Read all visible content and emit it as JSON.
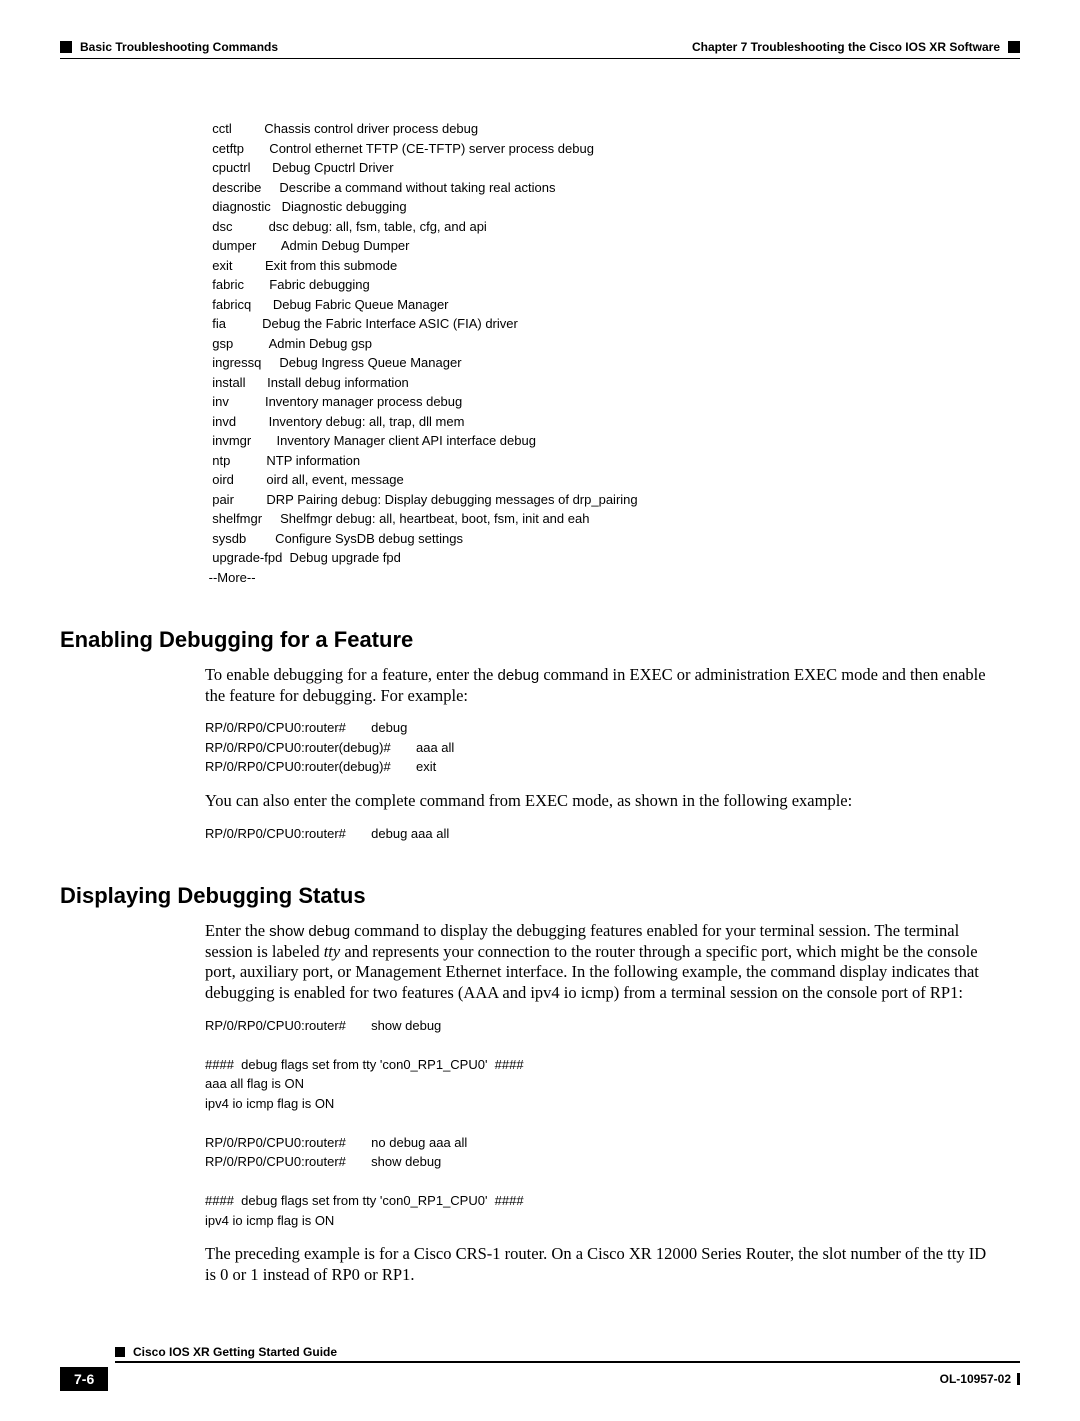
{
  "header": {
    "section": "Basic Troubleshooting Commands",
    "chapter": "Chapter 7      Troubleshooting the Cisco IOS XR Software"
  },
  "debug_rows": [
    [
      "cctl",
      "Chassis control driver process debug"
    ],
    [
      "cetftp",
      "Control ethernet TFTP (CE-TFTP) server process debug"
    ],
    [
      "cpuctrl",
      "Debug Cpuctrl Driver"
    ],
    [
      "describe",
      "Describe a command without taking real actions"
    ],
    [
      "diagnostic",
      "Diagnostic debugging"
    ],
    [
      "dsc",
      "dsc debug: all, fsm, table, cfg, and api"
    ],
    [
      "dumper",
      "Admin Debug Dumper"
    ],
    [
      "exit",
      "Exit from this submode"
    ],
    [
      "fabric",
      "Fabric debugging"
    ],
    [
      "fabricq",
      "Debug Fabric Queue Manager"
    ],
    [
      "fia",
      "Debug the Fabric Interface ASIC (FIA) driver"
    ],
    [
      "gsp",
      "Admin Debug gsp"
    ],
    [
      "ingressq",
      "Debug Ingress Queue Manager"
    ],
    [
      "install",
      "Install debug information"
    ],
    [
      "inv",
      "Inventory manager process debug"
    ],
    [
      "invd",
      "Inventory debug: all, trap, dll mem"
    ],
    [
      "invmgr",
      "Inventory Manager client API interface debug"
    ],
    [
      "ntp",
      "NTP information"
    ],
    [
      "oird",
      "oird all, event, message"
    ],
    [
      "pair",
      "DRP Pairing debug: Display debugging messages of drp_pairing"
    ],
    [
      "shelfmgr",
      "Shelfmgr debug: all, heartbeat, boot, fsm, init and eah"
    ],
    [
      "sysdb",
      "Configure SysDB debug settings"
    ],
    [
      "upgrade-fpd",
      "Debug upgrade fpd"
    ]
  ],
  "more_line": "--More--",
  "section1": {
    "title": "Enabling Debugging for a Feature",
    "p1_a": "To enable debugging for a feature, enter the ",
    "p1_b": "debug",
    "p1_c": " command in EXEC or administration EXEC mode and then enable the feature for debugging. For example:",
    "code1": "RP/0/RP0/CPU0:router#       debug\nRP/0/RP0/CPU0:router(debug)#       aaa all\nRP/0/RP0/CPU0:router(debug)#       exit",
    "p2": "You can also enter the complete command from EXEC mode, as shown in the following example:",
    "code2": "RP/0/RP0/CPU0:router#       debug aaa all"
  },
  "section2": {
    "title": "Displaying Debugging Status",
    "p1_a": "Enter the ",
    "p1_b": "show debug",
    "p1_c": " command to display the debugging features enabled for your terminal session. The terminal session is labeled ",
    "p1_d": "tty",
    "p1_e": " and represents your connection to the router through a specific port, which might be the console port, auxiliary port, or Management Ethernet interface. In the following example, the command display indicates that debugging is enabled for two features (AAA and ipv4 io icmp) from a terminal session on the console port of RP1:",
    "code1": "RP/0/RP0/CPU0:router#       show debug\n\n####  debug flags set from tty 'con0_RP1_CPU0'  ####\naaa all flag is ON\nipv4 io icmp flag is ON\n\nRP/0/RP0/CPU0:router#       no debug aaa all\nRP/0/RP0/CPU0:router#       show debug\n\n####  debug flags set from tty 'con0_RP1_CPU0'  ####\nipv4 io icmp flag is ON",
    "p2": "The preceding example is for a Cisco CRS-1 router. On a Cisco XR 12000 Series Router, the slot number of the tty ID is 0 or 1 instead of RP0 or RP1."
  },
  "footer": {
    "guide": "Cisco IOS XR Getting Started Guide",
    "page": "7-6",
    "ol": "OL-10957-02"
  }
}
